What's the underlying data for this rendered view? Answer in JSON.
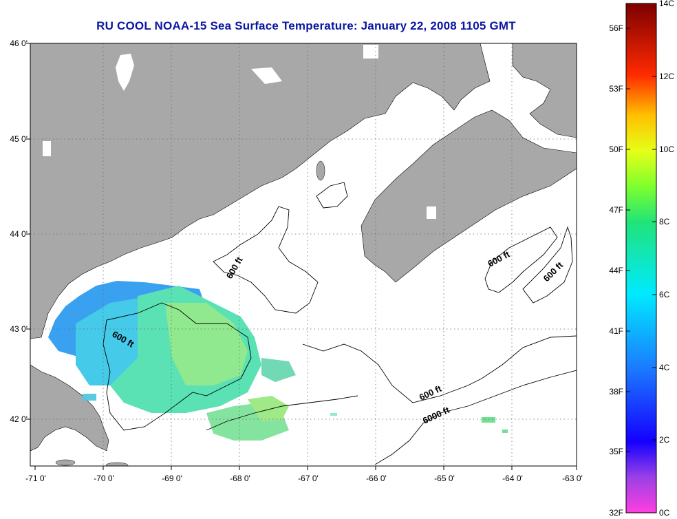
{
  "title": "RU COOL  NOAA-15  Sea Surface Temperature:  January 22, 2008 1105 GMT",
  "map": {
    "lon_labels": [
      "-71 0'",
      "-70 0'",
      "-69 0'",
      "-68 0'",
      "-67 0'",
      "-66 0'",
      "-65 0'",
      "-64 0'",
      "-63 0'"
    ],
    "lat_labels": [
      "46 0'",
      "45 0'",
      "44 0'",
      "43 0'",
      "42 0'"
    ],
    "lon_range": [
      -71,
      -63
    ],
    "lat_range": [
      41.5,
      46
    ],
    "contour_labels": [
      "600 ft",
      "600 ft",
      "600 ft",
      "600 ft",
      "600 ft",
      "6000 ft"
    ],
    "colors": {
      "land": "#a8a8a8",
      "ocean": "#ffffff",
      "grid": "#555555"
    }
  },
  "colorbar": {
    "celsius_labels": [
      "14C",
      "12C",
      "10C",
      "8C",
      "6C",
      "4C",
      "2C",
      "0C"
    ],
    "fahrenheit_labels": [
      "56F",
      "53F",
      "50F",
      "47F",
      "44F",
      "41F",
      "38F",
      "35F",
      "32F"
    ],
    "range_c": [
      0,
      14
    ]
  }
}
